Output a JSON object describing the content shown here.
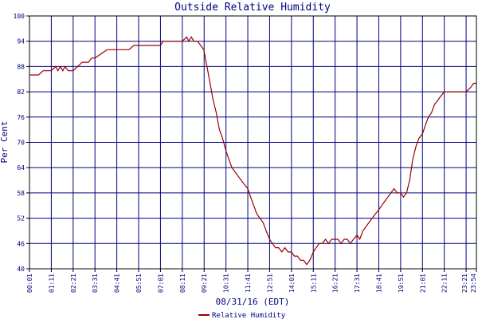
{
  "chart_data": {
    "type": "line",
    "title": "Outside Relative Humidity",
    "xlabel": "08/31/16 (EDT)",
    "ylabel": "Per Cent",
    "ylim": [
      40,
      100
    ],
    "yticks": [
      40,
      46,
      52,
      58,
      64,
      70,
      76,
      82,
      88,
      94,
      100
    ],
    "xlim": [
      "00:01",
      "23:54"
    ],
    "xticks": [
      "00:01",
      "01:11",
      "02:21",
      "03:31",
      "04:41",
      "05:51",
      "07:01",
      "08:11",
      "09:21",
      "10:31",
      "11:41",
      "12:51",
      "14:01",
      "15:11",
      "16:21",
      "17:31",
      "18:41",
      "19:51",
      "21:01",
      "22:11",
      "23:21",
      "23:54"
    ],
    "grid": true,
    "legend": "bottom-center",
    "colors": {
      "series": "#990000",
      "grid": "#000080",
      "axis": "#000000",
      "text": "#000080",
      "legend_text": "#000080"
    },
    "series": [
      {
        "name": "Relative Humidity",
        "points": [
          [
            "00:01",
            86
          ],
          [
            "00:30",
            86
          ],
          [
            "00:45",
            87
          ],
          [
            "01:11",
            87
          ],
          [
            "01:25",
            88
          ],
          [
            "01:32",
            87
          ],
          [
            "01:40",
            88
          ],
          [
            "01:48",
            87
          ],
          [
            "01:55",
            88
          ],
          [
            "02:05",
            87
          ],
          [
            "02:21",
            87
          ],
          [
            "02:35",
            88
          ],
          [
            "02:50",
            89
          ],
          [
            "03:10",
            89
          ],
          [
            "03:20",
            90
          ],
          [
            "03:31",
            90
          ],
          [
            "03:50",
            91
          ],
          [
            "04:10",
            92
          ],
          [
            "04:41",
            92
          ],
          [
            "05:20",
            92
          ],
          [
            "05:35",
            93
          ],
          [
            "05:51",
            93
          ],
          [
            "06:30",
            93
          ],
          [
            "07:01",
            93
          ],
          [
            "07:10",
            94
          ],
          [
            "07:30",
            94
          ],
          [
            "08:11",
            94
          ],
          [
            "08:25",
            95
          ],
          [
            "08:32",
            94
          ],
          [
            "08:40",
            95
          ],
          [
            "08:48",
            94
          ],
          [
            "09:00",
            94
          ],
          [
            "09:10",
            93
          ],
          [
            "09:20",
            92
          ],
          [
            "09:30",
            88
          ],
          [
            "09:40",
            84
          ],
          [
            "09:50",
            80
          ],
          [
            "10:00",
            77
          ],
          [
            "10:10",
            73
          ],
          [
            "10:20",
            71
          ],
          [
            "10:31",
            68
          ],
          [
            "10:40",
            66
          ],
          [
            "10:50",
            64
          ],
          [
            "11:00",
            63
          ],
          [
            "11:10",
            62
          ],
          [
            "11:20",
            61
          ],
          [
            "11:30",
            60
          ],
          [
            "11:41",
            59
          ],
          [
            "11:50",
            57
          ],
          [
            "12:00",
            55
          ],
          [
            "12:10",
            53
          ],
          [
            "12:20",
            52
          ],
          [
            "12:30",
            51
          ],
          [
            "12:40",
            49
          ],
          [
            "12:51",
            47
          ],
          [
            "13:00",
            46
          ],
          [
            "13:10",
            45
          ],
          [
            "13:20",
            45
          ],
          [
            "13:30",
            44
          ],
          [
            "13:40",
            45
          ],
          [
            "13:50",
            44
          ],
          [
            "14:01",
            44
          ],
          [
            "14:10",
            43
          ],
          [
            "14:20",
            43
          ],
          [
            "14:30",
            42
          ],
          [
            "14:40",
            42
          ],
          [
            "14:50",
            41
          ],
          [
            "15:00",
            42
          ],
          [
            "15:11",
            44
          ],
          [
            "15:20",
            45
          ],
          [
            "15:30",
            46
          ],
          [
            "15:40",
            46
          ],
          [
            "15:50",
            47
          ],
          [
            "16:00",
            46
          ],
          [
            "16:10",
            47
          ],
          [
            "16:21",
            47
          ],
          [
            "16:30",
            47
          ],
          [
            "16:40",
            46
          ],
          [
            "16:50",
            47
          ],
          [
            "17:00",
            47
          ],
          [
            "17:10",
            46
          ],
          [
            "17:20",
            47
          ],
          [
            "17:31",
            48
          ],
          [
            "17:40",
            47
          ],
          [
            "17:50",
            49
          ],
          [
            "18:00",
            50
          ],
          [
            "18:10",
            51
          ],
          [
            "18:20",
            52
          ],
          [
            "18:30",
            53
          ],
          [
            "18:41",
            54
          ],
          [
            "18:50",
            55
          ],
          [
            "19:00",
            56
          ],
          [
            "19:10",
            57
          ],
          [
            "19:20",
            58
          ],
          [
            "19:30",
            59
          ],
          [
            "19:40",
            58
          ],
          [
            "19:51",
            58
          ],
          [
            "20:00",
            57
          ],
          [
            "20:10",
            58
          ],
          [
            "20:20",
            61
          ],
          [
            "20:30",
            66
          ],
          [
            "20:40",
            69
          ],
          [
            "20:50",
            71
          ],
          [
            "21:01",
            72
          ],
          [
            "21:10",
            74
          ],
          [
            "21:20",
            76
          ],
          [
            "21:30",
            77
          ],
          [
            "21:40",
            79
          ],
          [
            "21:50",
            80
          ],
          [
            "22:00",
            81
          ],
          [
            "22:11",
            82
          ],
          [
            "22:30",
            82
          ],
          [
            "22:50",
            82
          ],
          [
            "23:00",
            82
          ],
          [
            "23:21",
            82
          ],
          [
            "23:35",
            83
          ],
          [
            "23:45",
            84
          ],
          [
            "23:54",
            84
          ]
        ]
      }
    ]
  }
}
